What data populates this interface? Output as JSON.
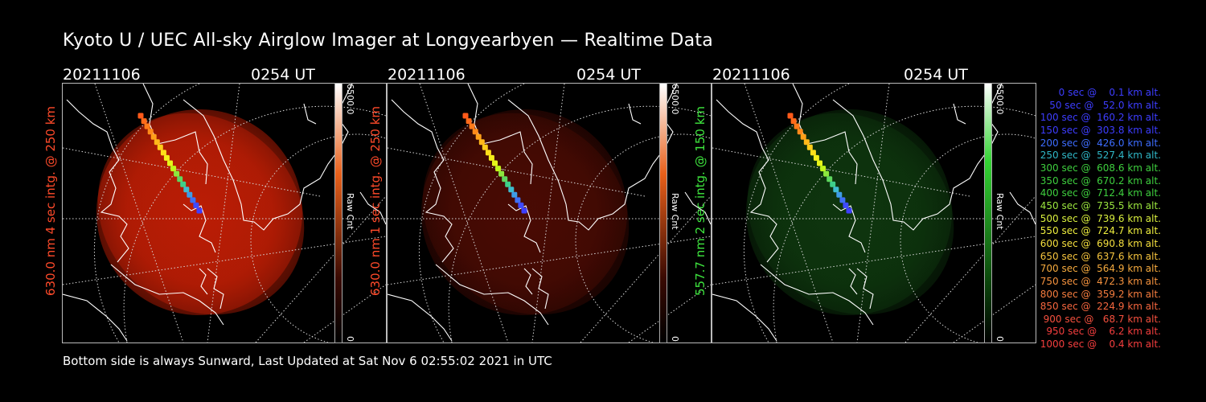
{
  "title": "Kyoto U / UEC All-sky Airglow Imager at Longyearbyen — Realtime Data",
  "panels": [
    {
      "date": "20211106",
      "time": "0254 UT",
      "side_label": "630.0 nm 4 sec intg. @ 250 km",
      "cbar_max": "6500.0",
      "cbar_min": "0",
      "cbar_name": "Raw Cnt",
      "color": "#ff4a2a",
      "glow": "#c11e05",
      "glow_opacity": 0.85
    },
    {
      "date": "20211106",
      "time": "0254 UT",
      "side_label": "630.0 nm 1 sec intg. @ 250 km",
      "cbar_max": "6500.0",
      "cbar_min": "0",
      "cbar_name": "Raw Cnt",
      "color": "#ff4a2a",
      "glow": "#5a0d04",
      "glow_opacity": 0.6
    },
    {
      "date": "20211106",
      "time": "0254 UT",
      "side_label": "557.7 nm 2 sec intg. @ 150 km",
      "cbar_max": "6500.0",
      "cbar_min": "0",
      "cbar_name": "Raw Cnt",
      "color": "#3ee63e",
      "glow": "#0f3a0f",
      "glow_opacity": 0.75
    }
  ],
  "footer": "Bottom side is always Sunward, Last Updated at Sat Nov  6 02:55:02 2021 in UTC",
  "legend": [
    {
      "text": "   0 sec @    0.1 km alt.",
      "color": "#3d3dff"
    },
    {
      "text": "  50 sec @   52.0 km alt.",
      "color": "#3d3dff"
    },
    {
      "text": " 100 sec @  160.2 km alt.",
      "color": "#3d3dff"
    },
    {
      "text": " 150 sec @  303.8 km alt.",
      "color": "#3d3dff"
    },
    {
      "text": " 200 sec @  426.0 km alt.",
      "color": "#3d6dff"
    },
    {
      "text": " 250 sec @  527.4 km alt.",
      "color": "#2fb7c7"
    },
    {
      "text": " 300 sec @  608.6 km alt.",
      "color": "#3ecf3e"
    },
    {
      "text": " 350 sec @  670.2 km alt.",
      "color": "#3ecf3e"
    },
    {
      "text": " 400 sec @  712.4 km alt.",
      "color": "#3ecf3e"
    },
    {
      "text": " 450 sec @  735.5 km alt.",
      "color": "#9be63e"
    },
    {
      "text": " 500 sec @  739.6 km alt.",
      "color": "#d9ef3e"
    },
    {
      "text": " 550 sec @  724.7 km alt.",
      "color": "#eeee3e"
    },
    {
      "text": " 600 sec @  690.8 km alt.",
      "color": "#f5df3e"
    },
    {
      "text": " 650 sec @  637.6 km alt.",
      "color": "#f5c33e"
    },
    {
      "text": " 700 sec @  564.9 km alt.",
      "color": "#f5aa3e"
    },
    {
      "text": " 750 sec @  472.3 km alt.",
      "color": "#f5923e"
    },
    {
      "text": " 800 sec @  359.2 km alt.",
      "color": "#f57c3e"
    },
    {
      "text": " 850 sec @  224.9 km alt.",
      "color": "#f5663e"
    },
    {
      "text": " 900 sec @   68.7 km alt.",
      "color": "#f5503e"
    },
    {
      "text": " 950 sec @    6.2 km alt.",
      "color": "#f53e3e"
    },
    {
      "text": "1000 sec @    0.4 km alt.",
      "color": "#f53e3e"
    }
  ]
}
